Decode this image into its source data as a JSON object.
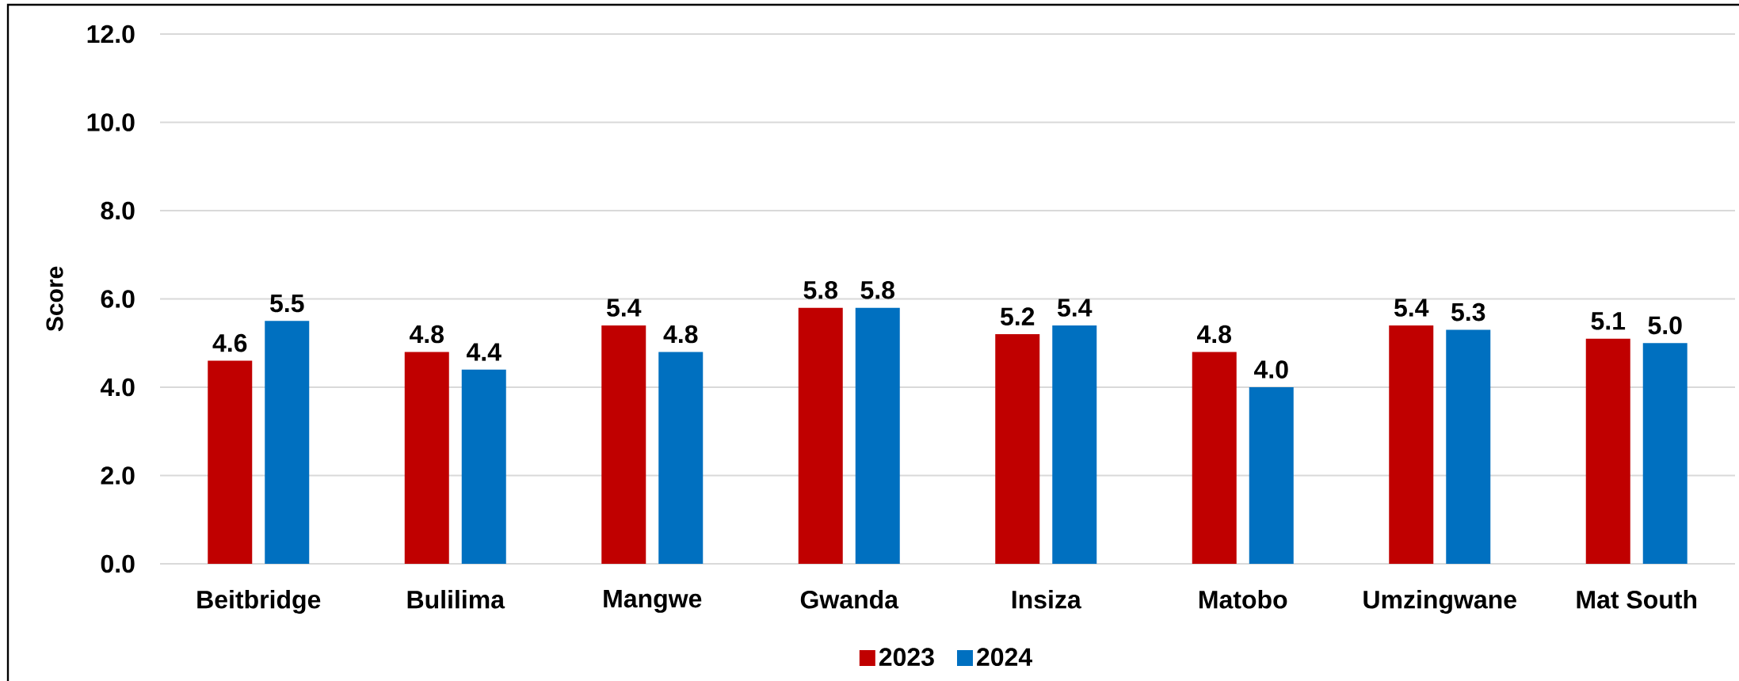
{
  "chart_data": {
    "type": "bar",
    "ylabel": "Score",
    "categories": [
      "Beitbridge",
      "Bulilima",
      "Mangwe",
      "Gwanda",
      "Insiza",
      "Matobo",
      "Umzingwane",
      "Mat South"
    ],
    "series": [
      {
        "name": "2023",
        "color": "#c00000",
        "values": [
          4.6,
          4.8,
          5.4,
          5.8,
          5.2,
          4.8,
          5.4,
          5.1
        ],
        "value_labels": [
          "4.6",
          "4.8",
          "5.4",
          "5.8",
          "5.2",
          "4.8",
          "5.4",
          "5.1"
        ]
      },
      {
        "name": "2024",
        "color": "#0070c0",
        "values": [
          5.5,
          4.4,
          4.8,
          5.8,
          5.4,
          4.0,
          5.3,
          5.0
        ],
        "value_labels": [
          "5.5",
          "4.4",
          "4.8",
          "5.8",
          "5.4",
          "4.0",
          "5.3",
          "5.0"
        ]
      }
    ],
    "ylim": [
      0,
      12
    ],
    "yticks": [
      {
        "value": 0,
        "label": "0.0"
      },
      {
        "value": 2,
        "label": "2.0"
      },
      {
        "value": 4,
        "label": "4.0"
      },
      {
        "value": 6,
        "label": "6.0"
      },
      {
        "value": 8,
        "label": "8.0"
      },
      {
        "value": 10,
        "label": "10.0"
      },
      {
        "value": 12,
        "label": "12.0"
      }
    ],
    "grid": "y",
    "legend": "bottom"
  }
}
